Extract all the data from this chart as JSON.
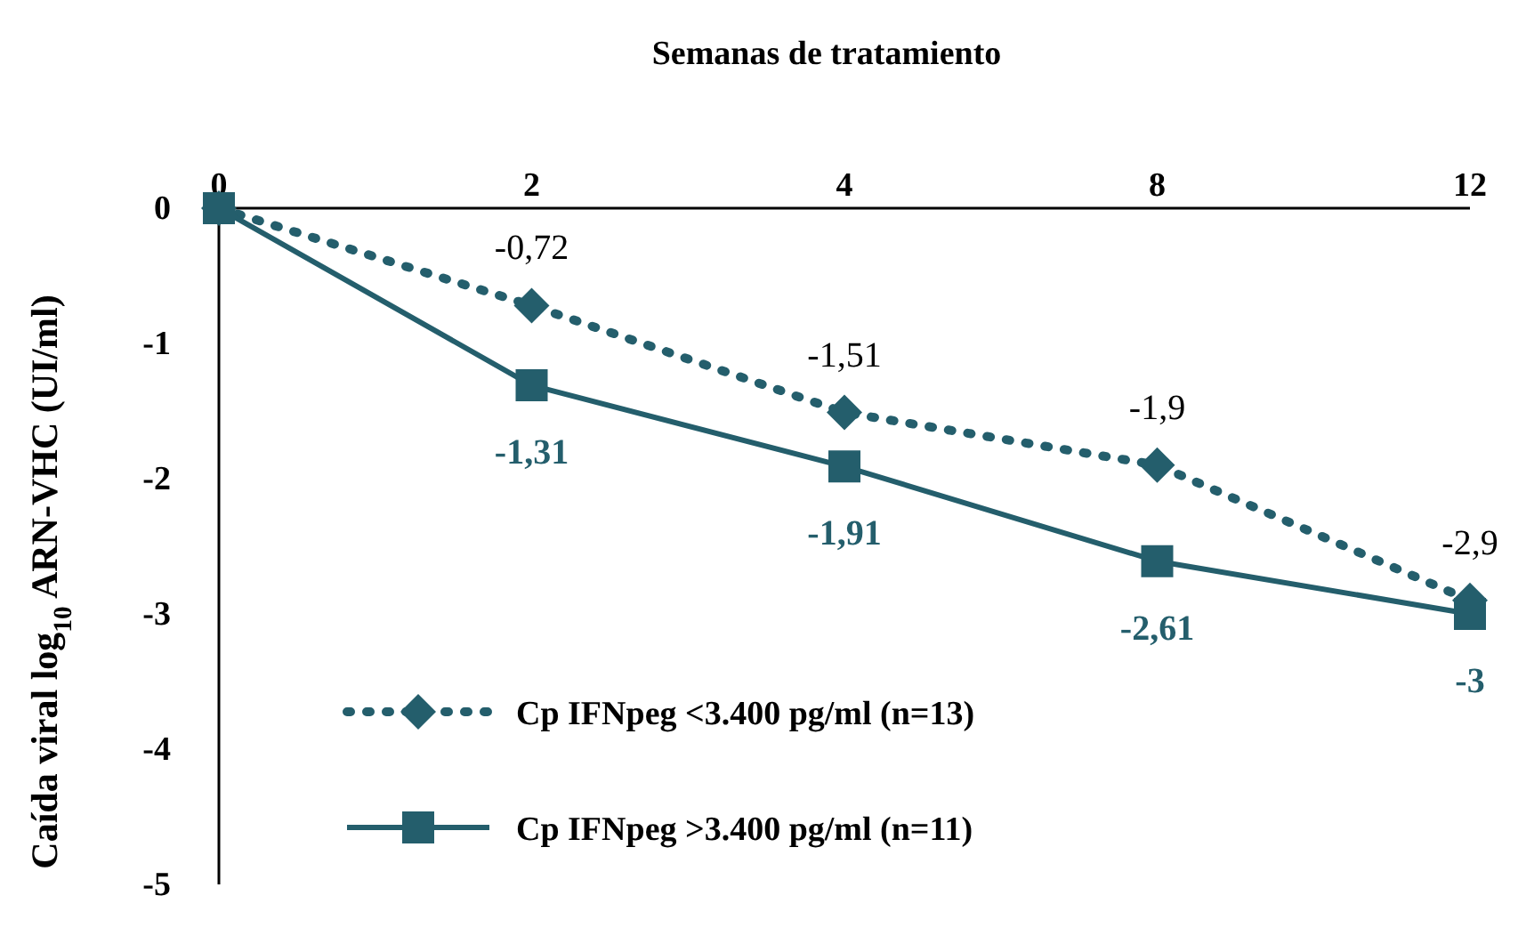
{
  "chart_data": {
    "type": "line",
    "xlabel": "Semanas de tratamiento",
    "ylabel": "Caída viral log$_{10}$ ARN-VHC (UI/ml)",
    "categories": [
      "0",
      "2",
      "4",
      "8",
      "12"
    ],
    "ylim": [
      -5,
      0
    ],
    "yticks": [
      0,
      -1,
      -2,
      -3,
      -4,
      -5
    ],
    "grid": false,
    "legend": "bottom left",
    "series": [
      {
        "name": "Cp IFNpeg <3.400 pg/ml (n=13)",
        "color": "#245e6c",
        "values": [
          0,
          -0.72,
          -1.51,
          -1.9,
          -2.9
        ],
        "value_labels": [
          null,
          "-0,72",
          "-1,51",
          "-1,9",
          "-2,9"
        ],
        "marker": "diamond",
        "line_style": "dotted"
      },
      {
        "name": "Cp IFNpeg >3.400 pg/ml (n=11)",
        "color": "#245e6c",
        "values": [
          0,
          -1.31,
          -1.91,
          -2.61,
          -3
        ],
        "value_labels": [
          null,
          "-1,31",
          "-1,91",
          "-2,61",
          "-3"
        ],
        "marker": "square",
        "line_style": "solid"
      }
    ]
  }
}
